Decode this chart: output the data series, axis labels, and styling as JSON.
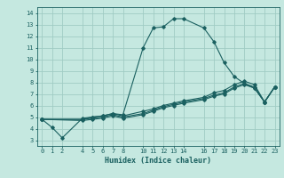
{
  "xlabel": "Humidex (Indice chaleur)",
  "ylabel": "",
  "bg_color": "#c5e8e0",
  "grid_color": "#a0ccc4",
  "line_color": "#1a6060",
  "xlim": [
    -0.5,
    23.5
  ],
  "ylim": [
    2.5,
    14.5
  ],
  "xticks": [
    0,
    1,
    2,
    4,
    5,
    6,
    7,
    8,
    10,
    11,
    12,
    13,
    14,
    16,
    17,
    18,
    19,
    20,
    21,
    22,
    23
  ],
  "yticks": [
    3,
    4,
    5,
    6,
    7,
    8,
    9,
    10,
    11,
    12,
    13,
    14
  ],
  "series": [
    {
      "x": [
        0,
        1,
        2,
        4,
        5,
        6,
        7,
        8,
        10,
        11,
        12,
        13,
        14,
        16,
        17,
        18,
        19,
        20,
        21,
        22,
        23
      ],
      "y": [
        4.8,
        4.1,
        3.2,
        4.9,
        5.0,
        5.1,
        5.3,
        5.2,
        11.0,
        12.7,
        12.8,
        13.5,
        13.5,
        12.7,
        11.5,
        9.7,
        8.5,
        7.9,
        7.5,
        6.3,
        7.6
      ]
    },
    {
      "x": [
        0,
        4,
        5,
        6,
        7,
        8,
        10,
        11,
        12,
        13,
        14,
        16,
        17,
        18,
        19,
        20,
        21,
        22,
        23
      ],
      "y": [
        4.8,
        4.8,
        4.9,
        5.0,
        5.2,
        5.0,
        5.3,
        5.6,
        5.9,
        6.1,
        6.3,
        6.6,
        6.9,
        7.1,
        7.6,
        7.9,
        7.6,
        6.3,
        7.6
      ]
    },
    {
      "x": [
        0,
        4,
        5,
        6,
        7,
        8,
        10,
        11,
        12,
        13,
        14,
        16,
        17,
        18,
        19,
        20,
        21,
        22,
        23
      ],
      "y": [
        4.8,
        4.8,
        5.0,
        5.1,
        5.3,
        5.1,
        5.5,
        5.7,
        6.0,
        6.2,
        6.4,
        6.7,
        7.1,
        7.3,
        7.8,
        8.1,
        7.8,
        6.3,
        7.6
      ]
    },
    {
      "x": [
        0,
        4,
        5,
        6,
        7,
        8,
        10,
        11,
        12,
        13,
        14,
        16,
        17,
        18,
        19,
        20,
        21,
        22,
        23
      ],
      "y": [
        4.8,
        4.7,
        4.8,
        4.9,
        5.1,
        4.9,
        5.2,
        5.5,
        5.8,
        6.0,
        6.2,
        6.5,
        6.8,
        7.0,
        7.5,
        7.8,
        7.5,
        6.3,
        7.6
      ]
    }
  ]
}
